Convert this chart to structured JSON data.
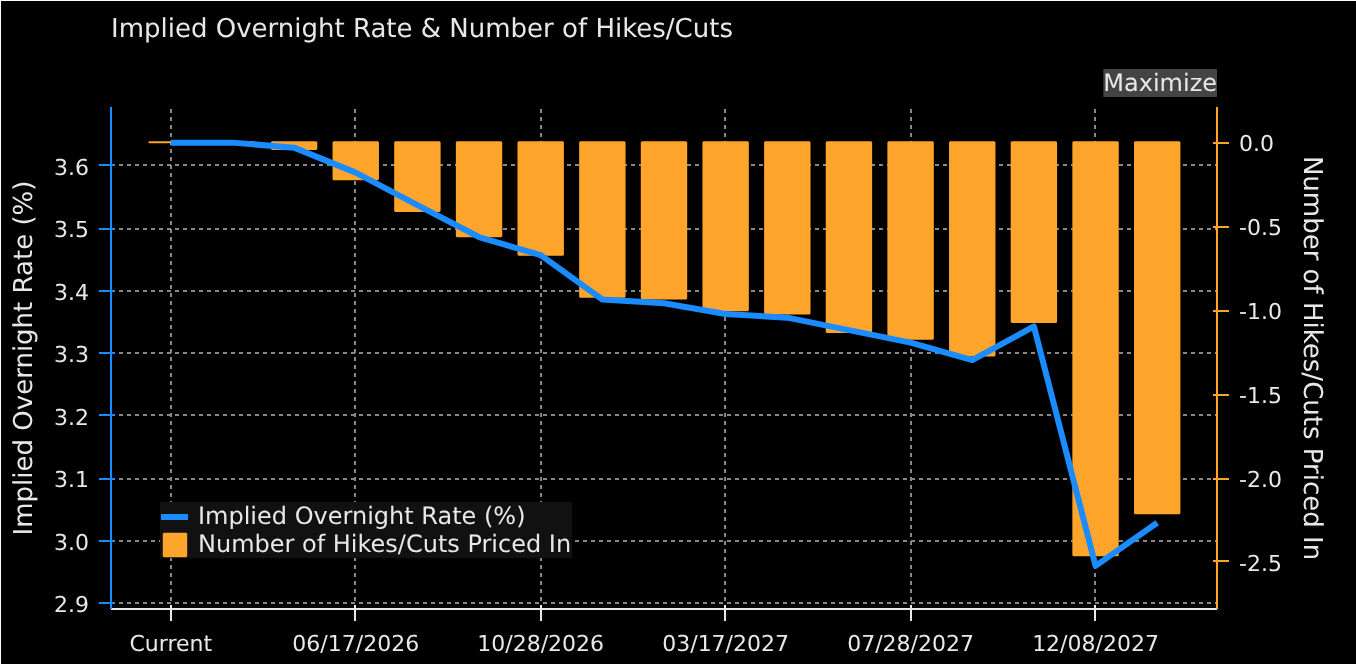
{
  "chart_data": {
    "type": "bar",
    "title": "Implied Overnight Rate & Number of Hikes/Cuts",
    "ylabel": "Implied Overnight Rate (%)",
    "y2label": "Number of Hikes/Cuts Priced In",
    "annotations": [
      "Maximize"
    ],
    "categories": [
      "Current",
      null,
      null,
      "06/17/2026",
      null,
      null,
      "10/28/2026",
      null,
      null,
      "03/17/2027",
      null,
      null,
      "07/28/2027",
      null,
      null,
      "12/08/2027",
      null
    ],
    "series": [
      {
        "name": "Implied Overnight Rate (%)",
        "type": "line",
        "color": "#1a8cff",
        "values": [
          3.637,
          3.637,
          3.629,
          3.589,
          3.537,
          3.486,
          3.457,
          3.386,
          3.38,
          3.363,
          3.357,
          3.337,
          3.317,
          3.289,
          3.343,
          2.96,
          3.029
        ]
      },
      {
        "name": "Number of Hikes/Cuts Priced In",
        "axis": "y2",
        "color": "#ffa52c",
        "values": [
          0.0,
          0.0,
          -0.04,
          -0.22,
          -0.41,
          -0.56,
          -0.67,
          -0.92,
          -0.93,
          -1.0,
          -1.02,
          -1.13,
          -1.17,
          -1.27,
          -1.07,
          -2.46,
          -2.21
        ]
      }
    ],
    "ylim": [
      2.891,
      3.694
    ],
    "yticks": [
      2.9,
      {
        "value": 3,
        "label": "3.0"
      },
      3.1,
      3.2,
      3.3,
      3.4,
      3.5,
      3.6
    ],
    "y2lim": [
      -2.78,
      0.21
    ],
    "y2ticks": [
      -2.5,
      {
        "value": -2,
        "label": "-2.0"
      },
      -1.5,
      {
        "value": -1,
        "label": "-1.0"
      },
      -0.5,
      {
        "value": 0,
        "label": "0.0"
      }
    ],
    "grid": true,
    "legend": "bottom left"
  }
}
